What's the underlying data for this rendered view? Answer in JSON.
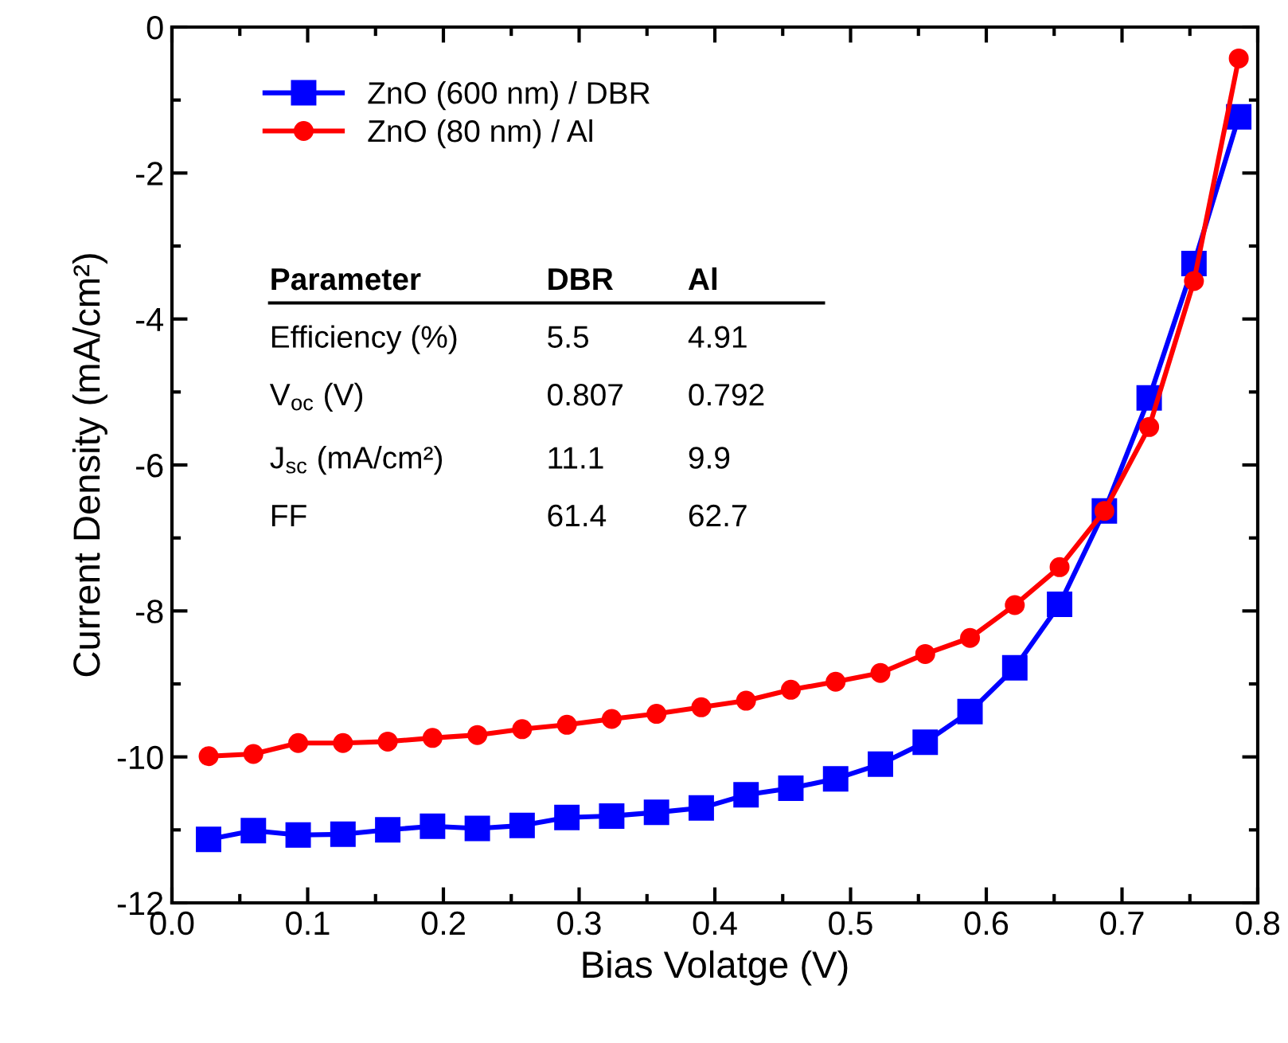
{
  "chart_data": {
    "type": "line",
    "xlabel": "Bias Volatge (V)",
    "ylabel": "Current Density (mA/cm²)",
    "xlim": [
      0.0,
      0.8
    ],
    "ylim": [
      -12,
      0
    ],
    "xticks": [
      {
        "value": 0.0,
        "label": "0.0"
      },
      0.1,
      0.2,
      0.3,
      0.4,
      0.5,
      0.6,
      0.7,
      0.8
    ],
    "yticks": [
      -12,
      -10,
      -8,
      -6,
      -4,
      -2,
      0
    ],
    "legend": "top left",
    "grid": false,
    "x": [
      0.027,
      0.06,
      0.093,
      0.126,
      0.159,
      0.192,
      0.225,
      0.258,
      0.291,
      0.324,
      0.357,
      0.39,
      0.423,
      0.456,
      0.489,
      0.522,
      0.555,
      0.588,
      0.621,
      0.654,
      0.687,
      0.72,
      0.753,
      0.786
    ],
    "series": [
      {
        "name": "ZnO (600 nm) / DBR",
        "color": "#0000ff",
        "marker": "square",
        "values": [
          -11.13,
          -11.01,
          -11.07,
          -11.06,
          -11.0,
          -10.95,
          -10.98,
          -10.94,
          -10.83,
          -10.81,
          -10.76,
          -10.7,
          -10.52,
          -10.43,
          -10.3,
          -10.1,
          -9.8,
          -9.38,
          -8.78,
          -7.91,
          -6.63,
          -5.08,
          -3.24,
          -1.23
        ]
      },
      {
        "name": "ZnO (80 nm) / Al",
        "color": "#ff0000",
        "marker": "circle",
        "values": [
          -9.99,
          -9.96,
          -9.81,
          -9.81,
          -9.79,
          -9.74,
          -9.7,
          -9.62,
          -9.56,
          -9.48,
          -9.41,
          -9.32,
          -9.23,
          -9.08,
          -8.97,
          -8.85,
          -8.59,
          -8.37,
          -7.92,
          -7.4,
          -6.63,
          -5.48,
          -3.48,
          -0.43
        ]
      }
    ],
    "annotations": [
      "Parameter",
      "DBR",
      "Al",
      "Efficiency (%)",
      "5.5",
      "4.91",
      "V$_{oc}$ (V)",
      "0.807",
      "0.792",
      "J$_{sc}$ (mA/cm²)",
      "11.1",
      "9.9",
      "FF",
      "61.4",
      "62.7"
    ]
  }
}
